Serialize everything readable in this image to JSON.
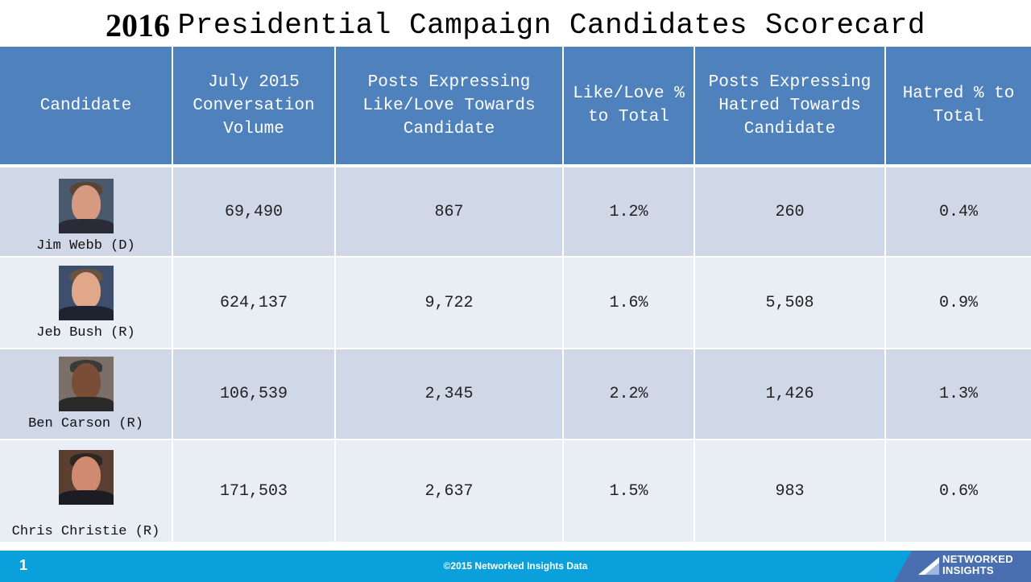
{
  "title": {
    "year": "2016",
    "rest": "Presidential Campaign Candidates Scorecard"
  },
  "table": {
    "headers": [
      "Candidate",
      "July 2015 Conversation Volume",
      "Posts Expressing Like/Love Towards Candidate",
      "Like/Love % to Total",
      "Posts Expressing Hatred Towards Candidate",
      "Hatred % to Total"
    ],
    "rows": [
      {
        "name": "Jim Webb (D)",
        "volume": "69,490",
        "like_posts": "867",
        "like_pct": "1.2%",
        "hate_posts": "260",
        "hate_pct": "0.4%"
      },
      {
        "name": "Jeb Bush (R)",
        "volume": "624,137",
        "like_posts": "9,722",
        "like_pct": "1.6%",
        "hate_posts": "5,508",
        "hate_pct": "0.9%"
      },
      {
        "name": "Ben Carson (R)",
        "volume": "106,539",
        "like_posts": "2,345",
        "like_pct": "2.2%",
        "hate_posts": "1,426",
        "hate_pct": "1.3%"
      },
      {
        "name": "Chris Christie (R)",
        "volume": "171,503",
        "like_posts": "2,637",
        "like_pct": "1.5%",
        "hate_posts": "983",
        "hate_pct": "0.6%"
      }
    ]
  },
  "footer": {
    "slide_number": "1",
    "copyright": "©2015  Networked Insights Data",
    "logo_line1": "NETWORKED",
    "logo_line2": "INSIGHTS"
  },
  "colors": {
    "header_blue": "#4f81bd",
    "row_dark": "#d0d8e8",
    "row_light": "#e9edf4",
    "footer_cyan": "#0aa0dc"
  }
}
